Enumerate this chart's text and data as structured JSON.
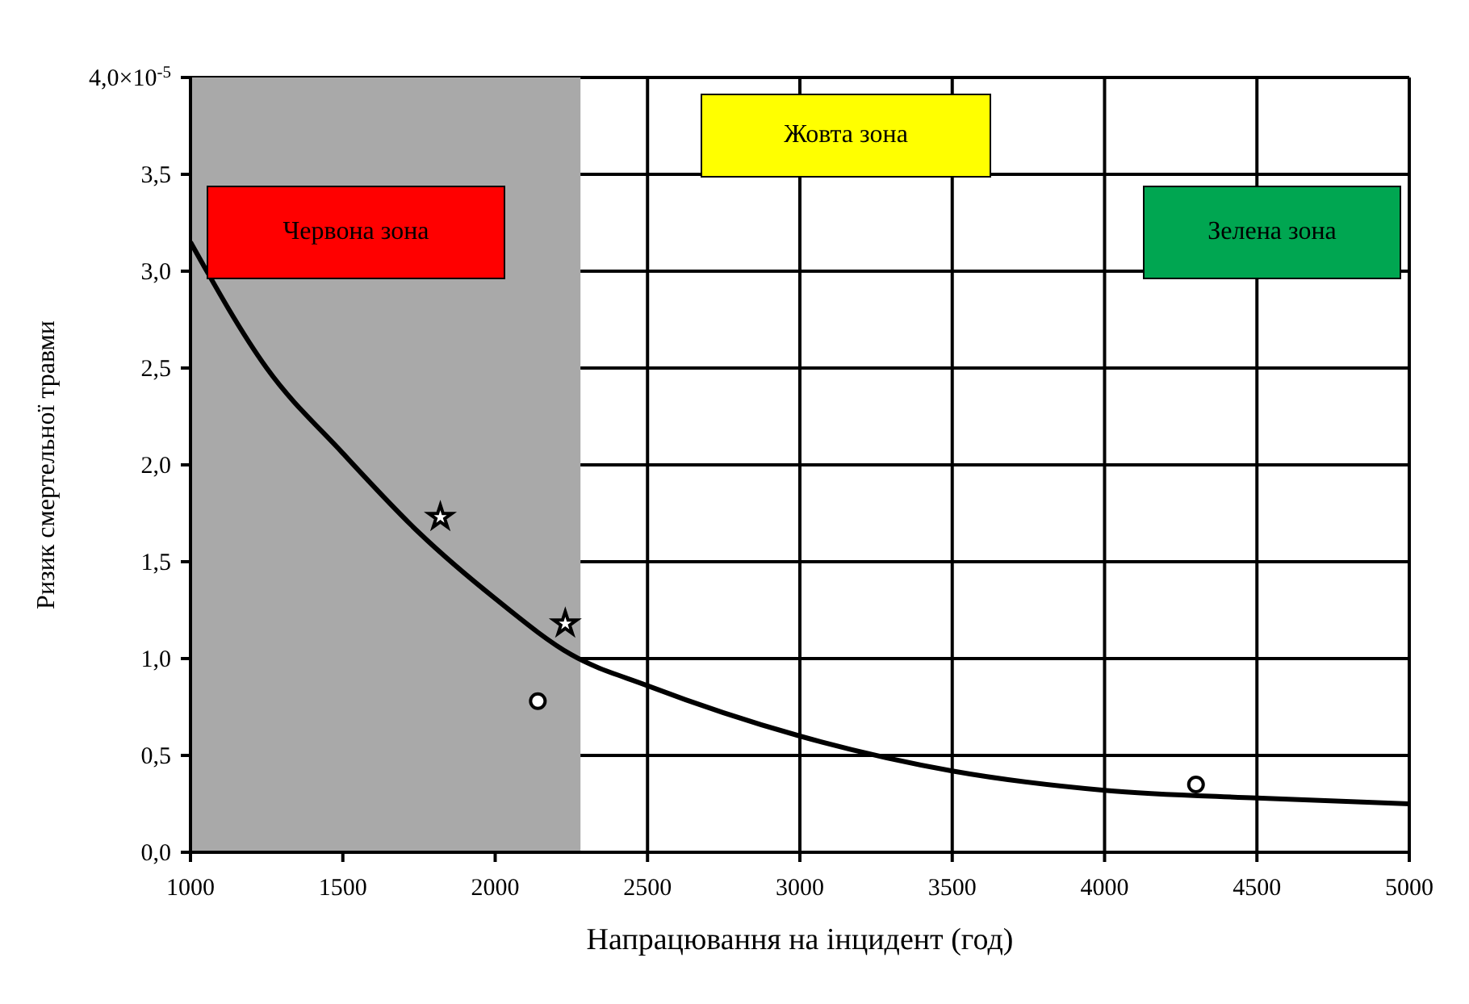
{
  "chart_data": {
    "type": "line",
    "xlabel": "Напрацювання на інцидент (год)",
    "ylabel": "Ризик смертельної травми",
    "xlim": [
      1000,
      5000
    ],
    "xticks": [
      1000,
      1500,
      2000,
      2500,
      3000,
      3500,
      4000,
      4500,
      5000
    ],
    "ylim": [
      0,
      4
    ],
    "yticks": [
      {
        "value": 0,
        "label": "0,0"
      },
      {
        "value": 0.5,
        "label": "0,5"
      },
      {
        "value": 1,
        "label": "1,0"
      },
      {
        "value": 1.5,
        "label": "1,5"
      },
      {
        "value": 2,
        "label": "2,0"
      },
      {
        "value": 2.5,
        "label": "2,5"
      },
      {
        "value": 3,
        "label": "3,0"
      },
      {
        "value": 3.5,
        "label": "3,5"
      },
      {
        "value": 4,
        "label": "4,0×10$^{-5}$"
      }
    ],
    "grid": true,
    "bands": [
      {
        "axis": "x",
        "from": 1000,
        "to": 2280,
        "color": "#a9a9a9"
      }
    ],
    "annotations": [
      "Червона зона",
      "Жовта зона",
      "Зелена зона"
    ],
    "series": [
      {
        "color": "#000000",
        "marker": "none",
        "line_style": "solid",
        "x": [
          1000,
          1250,
          1500,
          1750,
          2000,
          2250,
          2500,
          3000,
          3500,
          4000,
          4500,
          5000
        ],
        "values": [
          3.15,
          2.5,
          2.06,
          1.65,
          1.31,
          1.02,
          0.86,
          0.6,
          0.42,
          0.32,
          0.28,
          0.25
        ]
      },
      {
        "type": "scatter",
        "color": "#ffffff",
        "marker": "star",
        "x": [
          1820,
          2230
        ],
        "values": [
          1.73,
          1.18
        ]
      },
      {
        "type": "scatter",
        "color": "#ffffff",
        "marker": "circle",
        "x": [
          2140,
          4300
        ],
        "values": [
          0.78,
          0.35
        ]
      }
    ]
  }
}
